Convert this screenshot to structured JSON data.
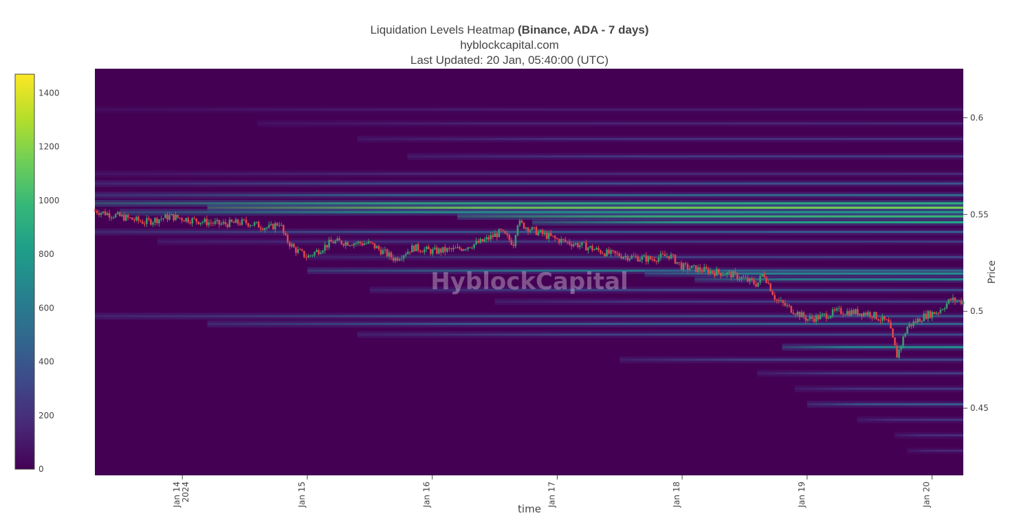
{
  "header": {
    "title_main": "Liquidation Levels Heatmap",
    "title_bold": "(Binance, ADA - 7 days)",
    "subtitle_site": "hyblockcapital.com",
    "subtitle_updated": "Last Updated: 20 Jan, 05:40:00 (UTC)"
  },
  "watermark": "HyblockCapital",
  "chart_data": {
    "type": "heatmap",
    "xlabel": "time",
    "ylabel": "Price",
    "ylim": [
      0.4153,
      0.6253
    ],
    "x_range_days": [
      13.3,
      20.25
    ],
    "x_ticks": [
      {
        "day": 14,
        "label": "Jan 14",
        "label2": "2024"
      },
      {
        "day": 15,
        "label": "Jan 15",
        "label2": ""
      },
      {
        "day": 16,
        "label": "Jan 16",
        "label2": ""
      },
      {
        "day": 17,
        "label": "Jan 17",
        "label2": ""
      },
      {
        "day": 18,
        "label": "Jan 18",
        "label2": ""
      },
      {
        "day": 19,
        "label": "Jan 19",
        "label2": ""
      },
      {
        "day": 20,
        "label": "Jan 20",
        "label2": ""
      }
    ],
    "y_ticks": [
      {
        "value": 0.6,
        "label": "0.6"
      },
      {
        "value": 0.55,
        "label": "0.55"
      },
      {
        "value": 0.5,
        "label": "0.5"
      },
      {
        "value": 0.45,
        "label": "0.45"
      }
    ],
    "colorbar": {
      "range": [
        0,
        1470
      ],
      "ticks": [
        {
          "value": 0,
          "label": "0"
        },
        {
          "value": 200,
          "label": "200"
        },
        {
          "value": 400,
          "label": "400"
        },
        {
          "value": 600,
          "label": "600"
        },
        {
          "value": 800,
          "label": "800"
        },
        {
          "value": 1000,
          "label": "1000"
        },
        {
          "value": 1200,
          "label": "1200"
        },
        {
          "value": 1400,
          "label": "1400"
        }
      ],
      "colors": [
        "#440154",
        "#482878",
        "#3e4989",
        "#31688e",
        "#26828e",
        "#1f9e89",
        "#35b779",
        "#6ece58",
        "#b5de2b",
        "#fde725"
      ]
    },
    "liquidation_bands": [
      {
        "price": 0.6042,
        "start_day": 13.3,
        "intensity": 120
      },
      {
        "price": 0.597,
        "start_day": 14.6,
        "intensity": 160
      },
      {
        "price": 0.589,
        "start_day": 15.4,
        "intensity": 220
      },
      {
        "price": 0.58,
        "start_day": 15.8,
        "intensity": 260
      },
      {
        "price": 0.571,
        "start_day": 13.3,
        "intensity": 180
      },
      {
        "price": 0.566,
        "start_day": 13.3,
        "intensity": 380
      },
      {
        "price": 0.56,
        "start_day": 13.3,
        "intensity": 520
      },
      {
        "price": 0.5558,
        "start_day": 13.3,
        "intensity": 900
      },
      {
        "price": 0.5535,
        "start_day": 14.2,
        "intensity": 1150
      },
      {
        "price": 0.5512,
        "start_day": 13.5,
        "intensity": 780
      },
      {
        "price": 0.549,
        "start_day": 16.2,
        "intensity": 980
      },
      {
        "price": 0.546,
        "start_day": 16.8,
        "intensity": 860
      },
      {
        "price": 0.541,
        "start_day": 13.3,
        "intensity": 420
      },
      {
        "price": 0.536,
        "start_day": 13.8,
        "intensity": 260
      },
      {
        "price": 0.528,
        "start_day": 15.0,
        "intensity": 300
      },
      {
        "price": 0.521,
        "start_day": 15.0,
        "intensity": 620
      },
      {
        "price": 0.5195,
        "start_day": 17.7,
        "intensity": 720
      },
      {
        "price": 0.5165,
        "start_day": 18.1,
        "intensity": 680
      },
      {
        "price": 0.511,
        "start_day": 15.5,
        "intensity": 330
      },
      {
        "price": 0.505,
        "start_day": 16.5,
        "intensity": 280
      },
      {
        "price": 0.4975,
        "start_day": 13.3,
        "intensity": 360
      },
      {
        "price": 0.4935,
        "start_day": 14.2,
        "intensity": 460
      },
      {
        "price": 0.488,
        "start_day": 15.4,
        "intensity": 320
      },
      {
        "price": 0.4815,
        "start_day": 18.8,
        "intensity": 720
      },
      {
        "price": 0.475,
        "start_day": 17.5,
        "intensity": 300
      },
      {
        "price": 0.468,
        "start_day": 18.6,
        "intensity": 260
      },
      {
        "price": 0.46,
        "start_day": 18.9,
        "intensity": 240
      },
      {
        "price": 0.452,
        "start_day": 19.0,
        "intensity": 420
      },
      {
        "price": 0.444,
        "start_day": 19.4,
        "intensity": 220
      },
      {
        "price": 0.436,
        "start_day": 19.7,
        "intensity": 200
      },
      {
        "price": 0.428,
        "start_day": 19.8,
        "intensity": 160
      }
    ],
    "price_series": {
      "x_days": [
        13.3,
        13.5,
        13.7,
        13.9,
        14.1,
        14.3,
        14.5,
        14.7,
        14.78,
        14.82,
        14.9,
        15.0,
        15.2,
        15.5,
        15.7,
        15.85,
        16.0,
        16.2,
        16.4,
        16.55,
        16.65,
        16.68,
        16.8,
        17.0,
        17.2,
        17.4,
        17.6,
        17.75,
        17.9,
        18.0,
        18.2,
        18.4,
        18.6,
        18.65,
        18.75,
        18.9,
        19.0,
        19.1,
        19.25,
        19.5,
        19.65,
        19.72,
        19.8,
        19.95,
        20.05,
        20.15,
        20.25
      ],
      "y_price": [
        0.552,
        0.549,
        0.546,
        0.549,
        0.547,
        0.545,
        0.546,
        0.543,
        0.546,
        0.538,
        0.532,
        0.528,
        0.536,
        0.535,
        0.527,
        0.533,
        0.531,
        0.532,
        0.536,
        0.541,
        0.535,
        0.546,
        0.542,
        0.537,
        0.534,
        0.53,
        0.528,
        0.527,
        0.529,
        0.523,
        0.521,
        0.519,
        0.514,
        0.52,
        0.506,
        0.5,
        0.496,
        0.497,
        0.5,
        0.499,
        0.494,
        0.477,
        0.492,
        0.498,
        0.5,
        0.506,
        0.505
      ]
    }
  }
}
